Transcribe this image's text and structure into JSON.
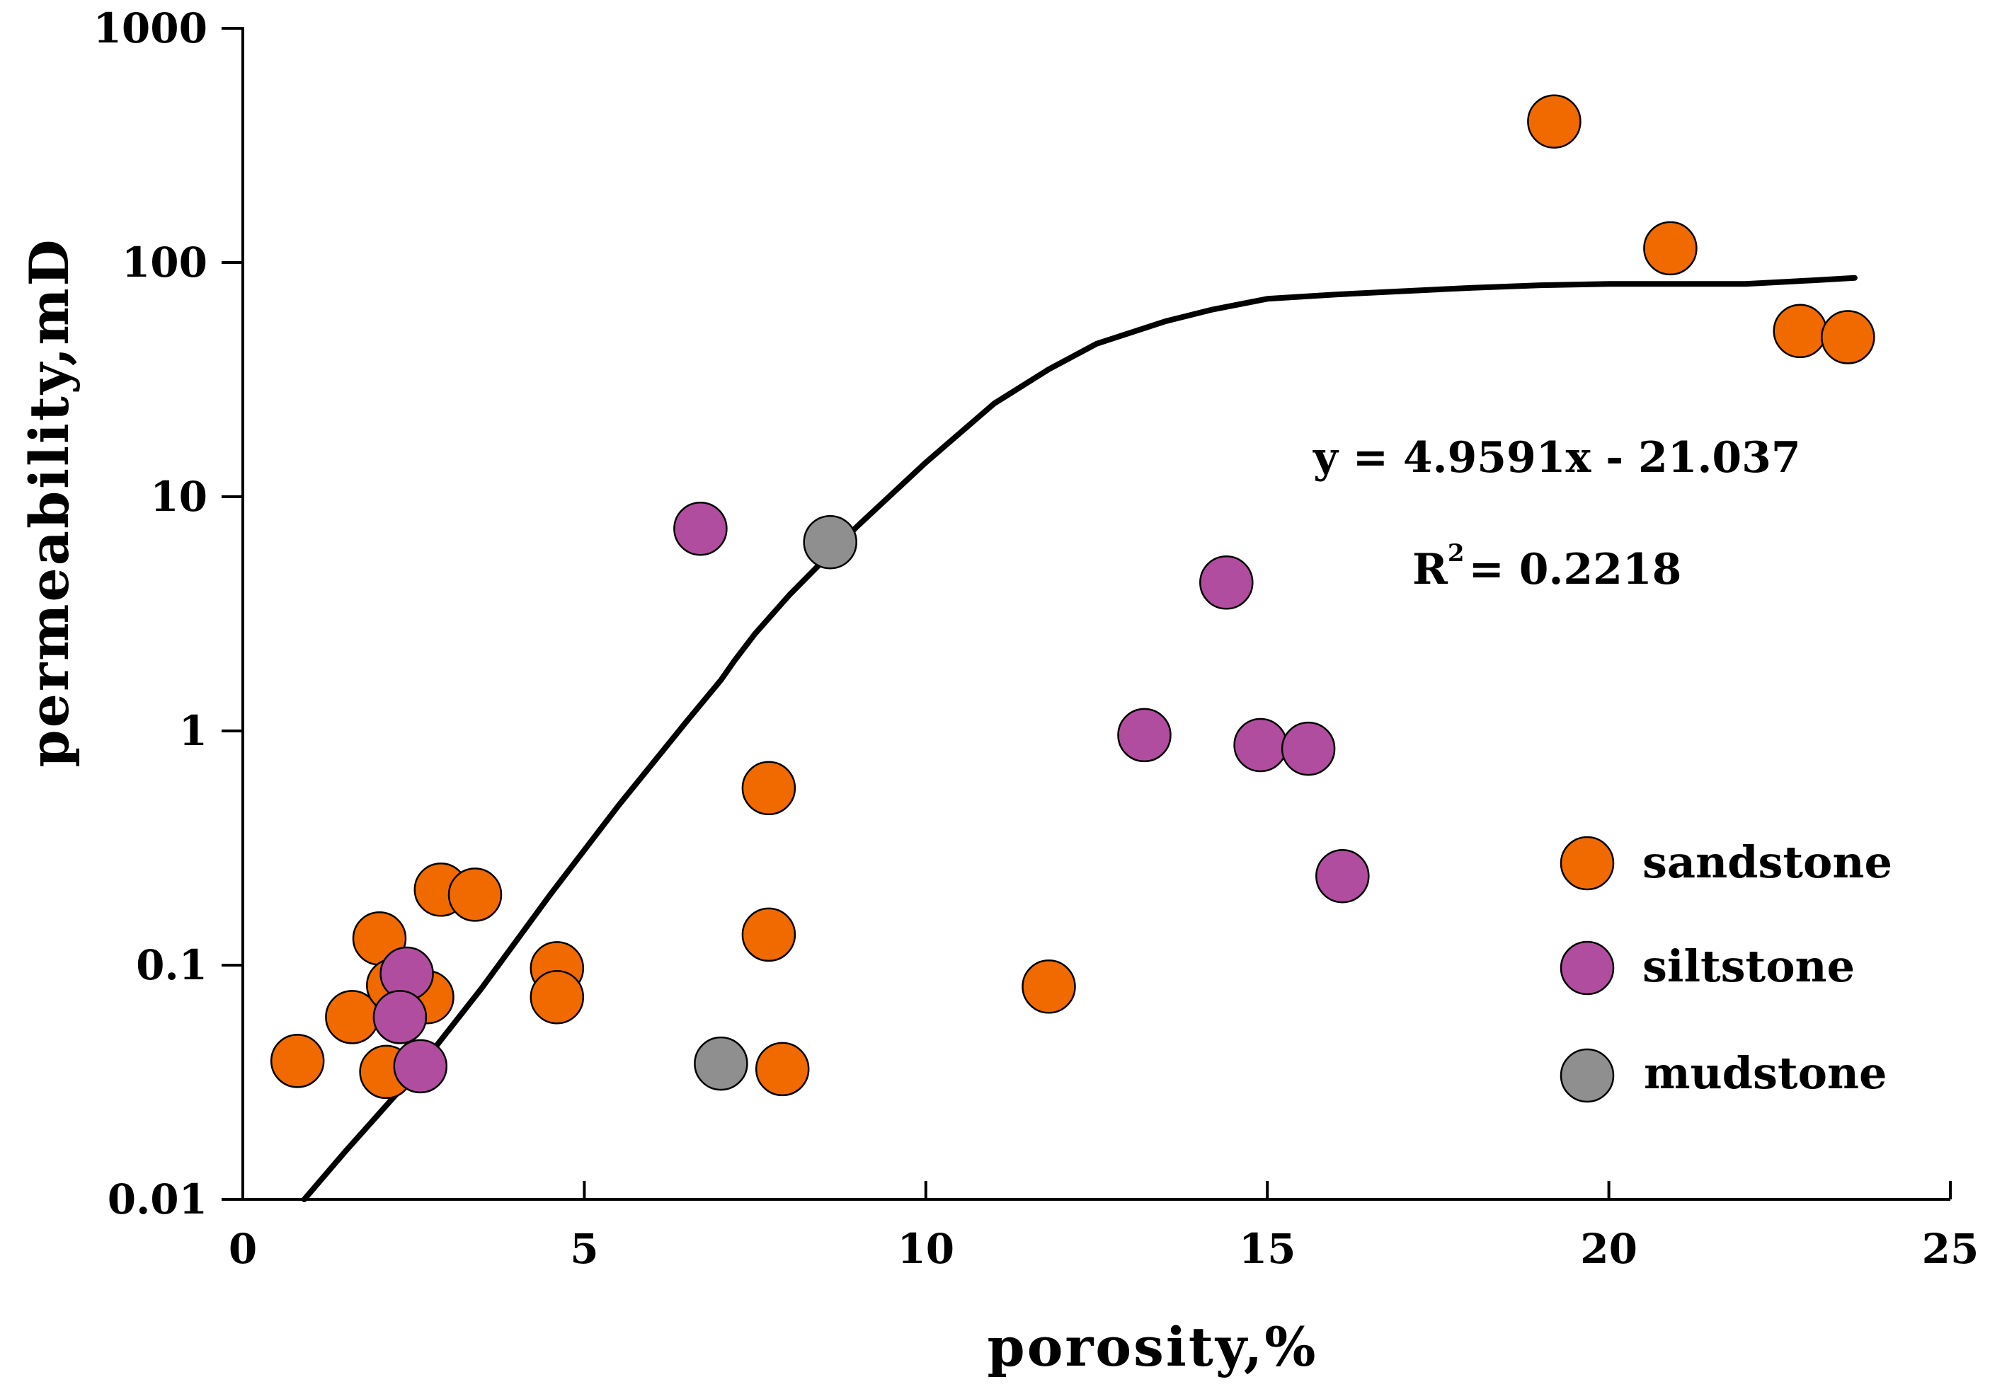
{
  "chart_data": {
    "type": "scatter",
    "title": "",
    "xlabel": "porosity,%",
    "ylabel": "permeability,mD",
    "xlim": [
      0,
      25
    ],
    "ylim": [
      0.01,
      1000
    ],
    "yscale": "log",
    "xticks": [
      0,
      5,
      10,
      15,
      20,
      25
    ],
    "xtick_labels": [
      "0",
      "5",
      "10",
      "15",
      "20",
      "25"
    ],
    "yticks": [
      0.01,
      0.1,
      1,
      10,
      100,
      1000
    ],
    "ytick_labels": [
      "0.01",
      "0.1",
      "1",
      "10",
      "100",
      "1000"
    ],
    "grid": false,
    "legend_position": "right",
    "colors": {
      "sandstone": "#f06a00",
      "siltstone": "#b14d9e",
      "mudstone": "#8f8f8f",
      "line": "#000000"
    },
    "series": [
      {
        "name": "sandstone",
        "label": "sandstone",
        "points": [
          [
            0.8,
            0.039
          ],
          [
            1.6,
            0.06
          ],
          [
            2.0,
            0.13
          ],
          [
            2.2,
            0.082
          ],
          [
            2.7,
            0.073
          ],
          [
            2.1,
            0.035
          ],
          [
            2.9,
            0.21
          ],
          [
            3.4,
            0.2
          ],
          [
            4.6,
            0.097
          ],
          [
            4.6,
            0.073
          ],
          [
            7.7,
            0.57
          ],
          [
            7.7,
            0.135
          ],
          [
            7.9,
            0.036
          ],
          [
            11.8,
            0.081
          ],
          [
            19.2,
            400
          ],
          [
            20.9,
            115
          ],
          [
            22.8,
            51
          ],
          [
            23.5,
            48
          ]
        ]
      },
      {
        "name": "siltstone",
        "label": "siltstone",
        "points": [
          [
            2.4,
            0.092
          ],
          [
            2.3,
            0.06
          ],
          [
            2.6,
            0.037
          ],
          [
            6.7,
            7.3
          ],
          [
            13.2,
            0.96
          ],
          [
            14.4,
            4.3
          ],
          [
            14.9,
            0.87
          ],
          [
            15.6,
            0.84
          ],
          [
            16.1,
            0.24
          ]
        ]
      },
      {
        "name": "mudstone",
        "label": "mudstone",
        "points": [
          [
            7.0,
            0.038
          ],
          [
            8.6,
            6.4
          ]
        ]
      }
    ],
    "trendline": {
      "points": [
        [
          0.9,
          0.01
        ],
        [
          1.5,
          0.016
        ],
        [
          2.5,
          0.034
        ],
        [
          3.5,
          0.08
        ],
        [
          4.5,
          0.2
        ],
        [
          5.5,
          0.48
        ],
        [
          6.5,
          1.1
        ],
        [
          7.0,
          1.65
        ],
        [
          7.2,
          2.0
        ],
        [
          7.5,
          2.6
        ],
        [
          8.0,
          3.8
        ],
        [
          9.0,
          7.5
        ],
        [
          10.0,
          14
        ],
        [
          11.0,
          25
        ],
        [
          11.8,
          35
        ],
        [
          12.5,
          45
        ],
        [
          13.5,
          56
        ],
        [
          14.2,
          63
        ],
        [
          15.0,
          70
        ],
        [
          16.0,
          73
        ],
        [
          18.0,
          78
        ],
        [
          19.0,
          80
        ],
        [
          20.0,
          81
        ],
        [
          21.0,
          81
        ],
        [
          22.0,
          81
        ],
        [
          23.0,
          84
        ],
        [
          23.6,
          86
        ]
      ]
    },
    "annotations": {
      "equation": "y = 4.9591x - 21.037",
      "r2_prefix": "R",
      "r2_sup": "2",
      "r2_value": "= 0.2218"
    }
  }
}
